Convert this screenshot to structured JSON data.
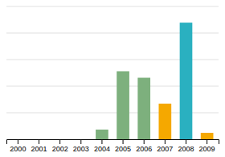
{
  "chart_data": {
    "type": "bar",
    "categories": [
      "2000",
      "2001",
      "2002",
      "2003",
      "2004",
      "2005",
      "2006",
      "2007",
      "2008",
      "2009"
    ],
    "values": [
      0,
      0,
      0,
      0,
      6,
      42,
      38,
      22,
      72,
      4
    ],
    "colors": [
      "#7db07d",
      "#7db07d",
      "#7db07d",
      "#7db07d",
      "#7db07d",
      "#7db07d",
      "#7db07d",
      "#f5a800",
      "#2ab0c0",
      "#f5a800"
    ],
    "ylim": [
      0,
      82
    ],
    "yticks": [
      0,
      16.4,
      32.8,
      49.2,
      65.6,
      82
    ],
    "grid": true,
    "tick_labels": "x"
  }
}
